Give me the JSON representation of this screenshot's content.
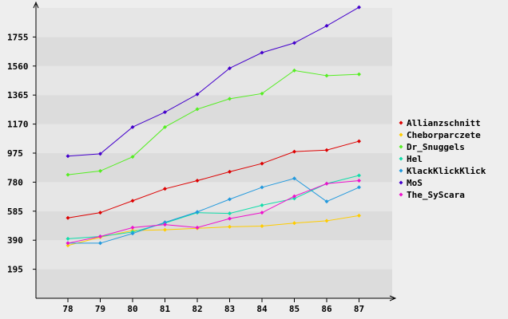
{
  "chart_data": {
    "type": "line",
    "title": "",
    "xlabel": "",
    "ylabel": "",
    "x": [
      "78",
      "79",
      "80",
      "81",
      "82",
      "83",
      "84",
      "85",
      "86",
      "87"
    ],
    "y_ticks": [
      "195",
      "390",
      "585",
      "780",
      "975",
      "1170",
      "1365",
      "1560",
      "1755"
    ],
    "ylim": [
      0,
      1950
    ],
    "grid": "horizontal bands",
    "legend_position": "right",
    "colors": {
      "background": "#eeeeee",
      "band_light": "#e6e6e6",
      "band_dark": "#dcdcdc",
      "axis": "#000000"
    },
    "series": [
      {
        "name": "Allianzschnitt",
        "color": "#dd0000",
        "values": [
          540,
          575,
          655,
          735,
          790,
          850,
          905,
          985,
          995,
          1055
        ]
      },
      {
        "name": "Cheborparczete",
        "color": "#ffcc00",
        "values": [
          355,
          410,
          455,
          460,
          470,
          480,
          485,
          505,
          520,
          555
        ]
      },
      {
        "name": "Dr_Snuggels",
        "color": "#55ee22",
        "values": [
          830,
          855,
          950,
          1150,
          1270,
          1340,
          1375,
          1530,
          1495,
          1505
        ]
      },
      {
        "name": "Hel",
        "color": "#11ddaa",
        "values": [
          400,
          415,
          445,
          505,
          575,
          570,
          625,
          670,
          770,
          825
        ]
      },
      {
        "name": "KlackKlickKlick",
        "color": "#2299dd",
        "values": [
          370,
          370,
          435,
          510,
          580,
          665,
          745,
          805,
          650,
          745
        ]
      },
      {
        "name": "MoS",
        "color": "#4400cc",
        "values": [
          955,
          970,
          1150,
          1250,
          1370,
          1545,
          1650,
          1715,
          1830,
          1955
        ]
      },
      {
        "name": "The_SyScara",
        "color": "#ee11cc",
        "values": [
          370,
          415,
          475,
          495,
          475,
          535,
          575,
          685,
          770,
          790
        ]
      }
    ]
  }
}
